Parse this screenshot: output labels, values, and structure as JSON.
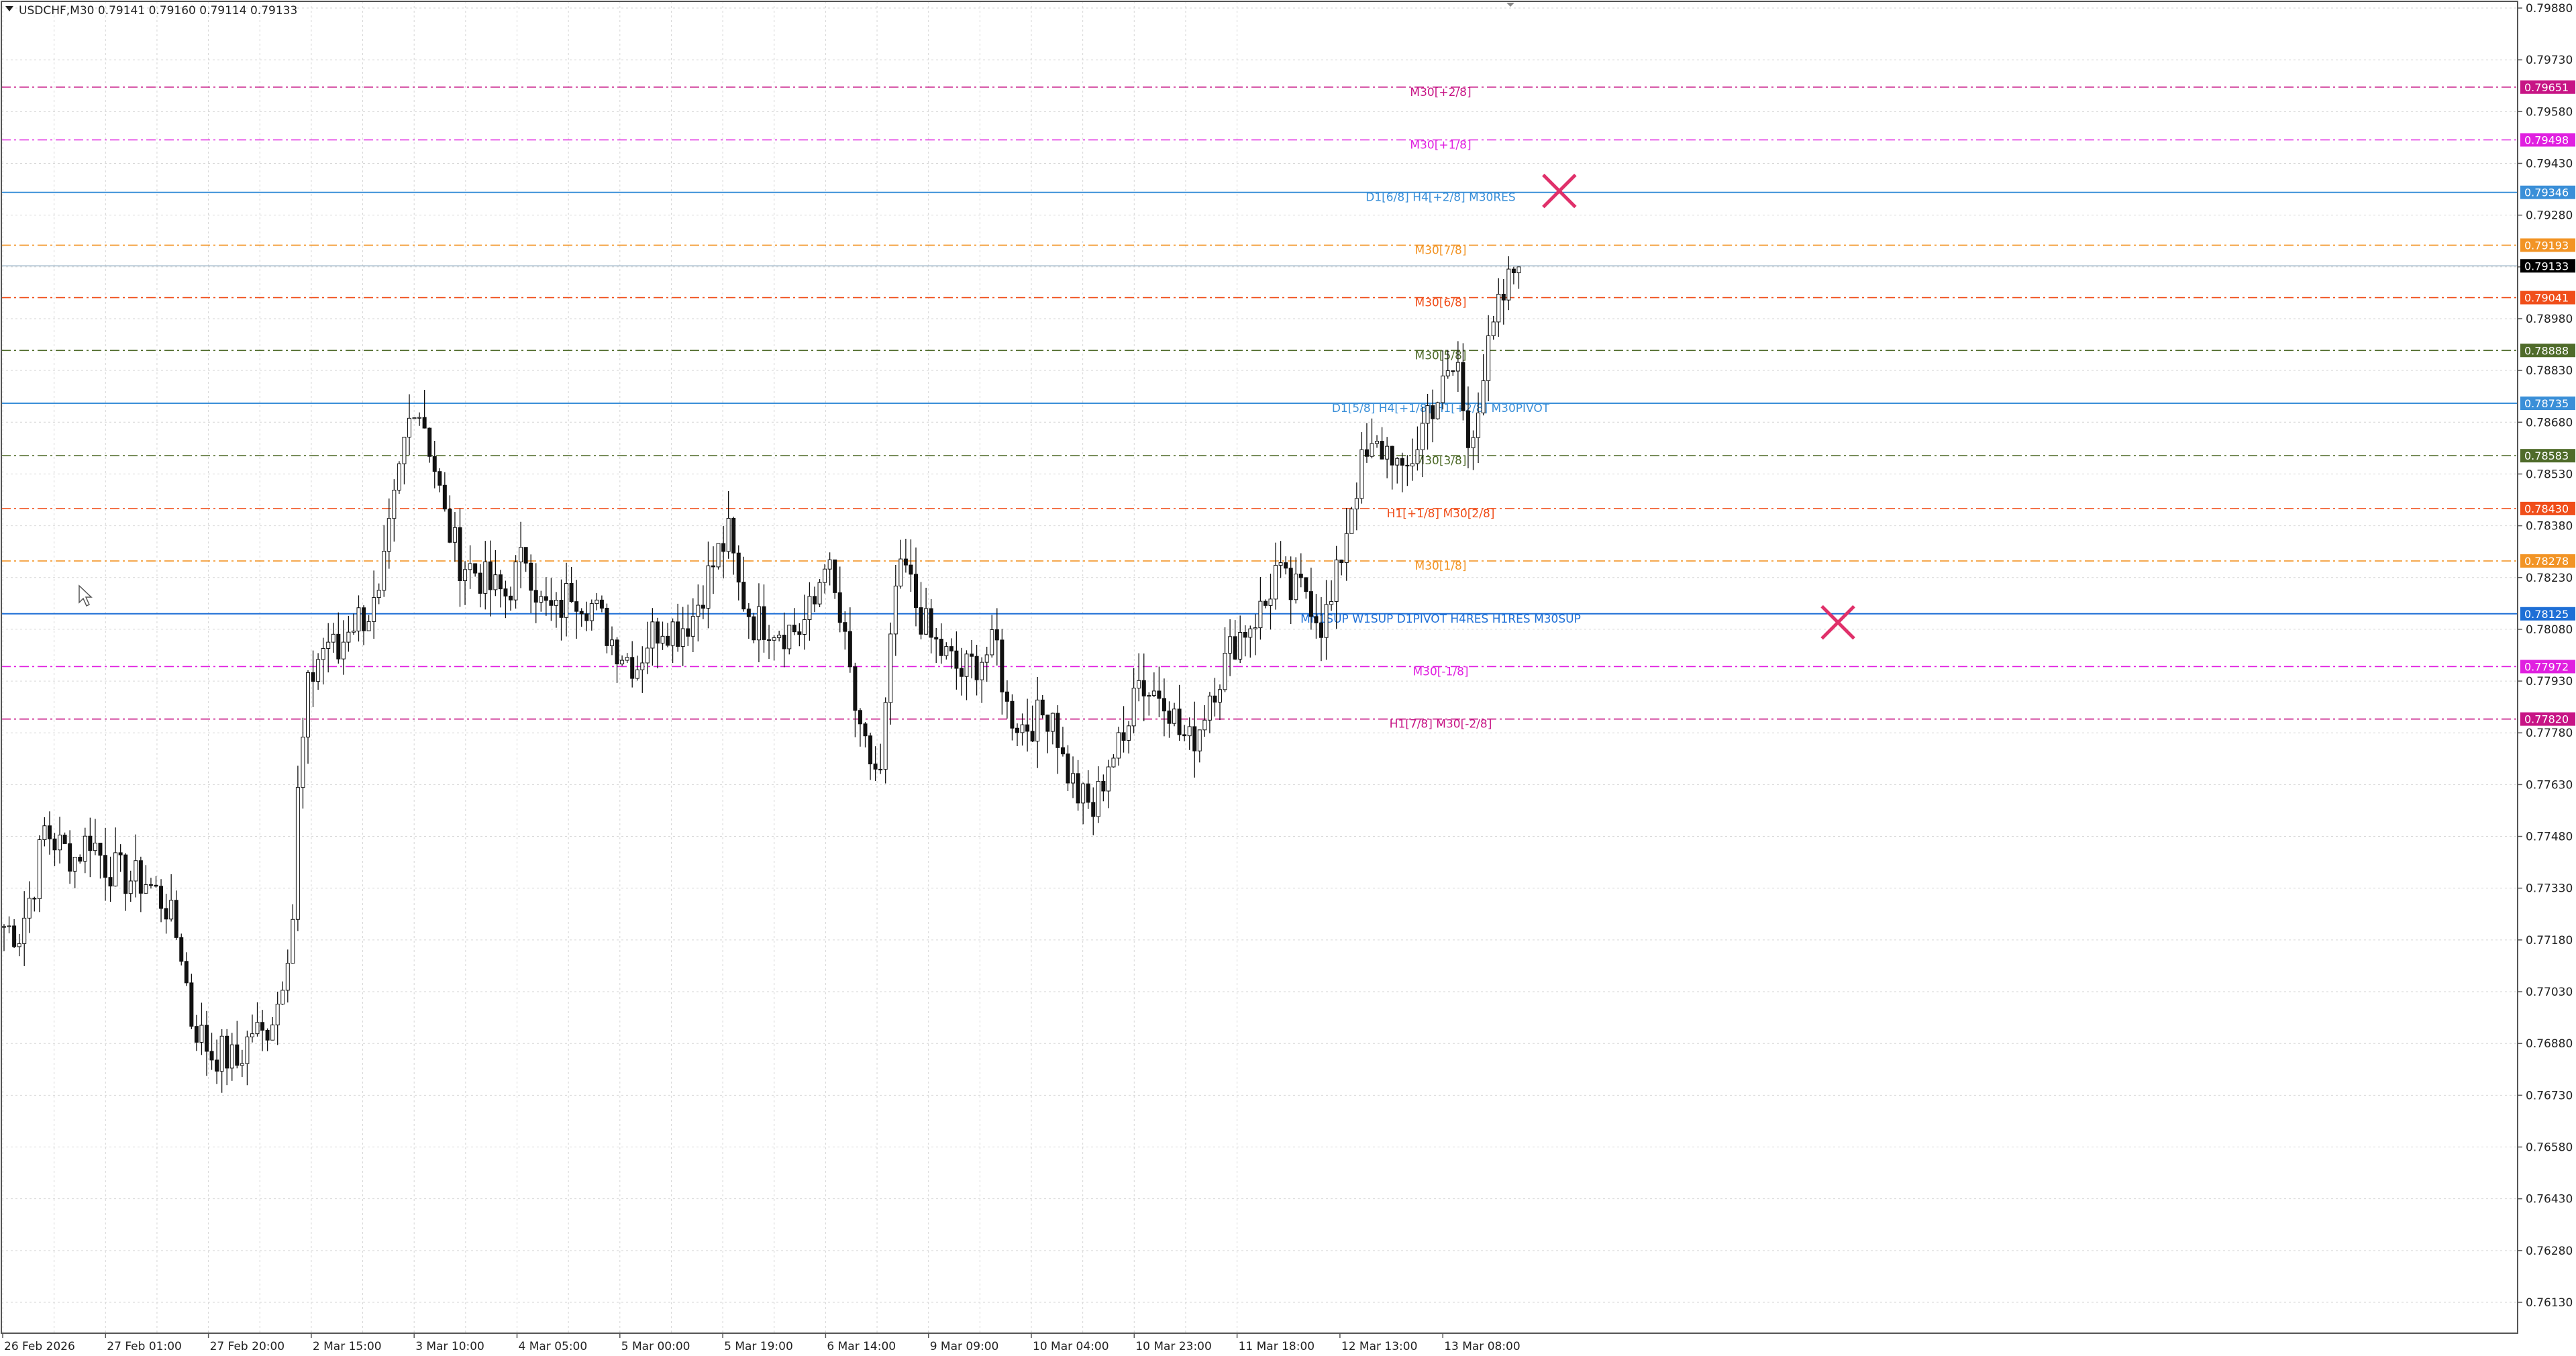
{
  "window": {
    "title": "USDCHF,M30  0.79141 0.79160 0.79114 0.79133"
  },
  "chart_data": {
    "type": "candlestick",
    "symbol": "USDCHF",
    "timeframe": "M30",
    "ohlc_header": {
      "open": 0.79141,
      "high": 0.7916,
      "low": 0.79114,
      "close": 0.79133
    },
    "ylim": [
      0.7606,
      0.7988
    ],
    "y_ticks": [
      "0.79880",
      "0.79730",
      "0.79580",
      "0.79430",
      "0.79280",
      "0.79130",
      "0.78980",
      "0.78830",
      "0.78680",
      "0.78530",
      "0.78380",
      "0.78230",
      "0.78080",
      "0.77930",
      "0.77780",
      "0.77630",
      "0.77480",
      "0.77330",
      "0.77180",
      "0.77030",
      "0.76880",
      "0.76730",
      "0.76580",
      "0.76430",
      "0.76280",
      "0.76130"
    ],
    "x_labels": [
      "26 Feb 2026",
      "27 Feb 01:00",
      "27 Feb 20:00",
      "2 Mar 15:00",
      "3 Mar 10:00",
      "4 Mar 05:00",
      "5 Mar 00:00",
      "5 Mar 19:00",
      "6 Mar 14:00",
      "9 Mar 09:00",
      "10 Mar 04:00",
      "10 Mar 23:00",
      "11 Mar 18:00",
      "12 Mar 13:00",
      "13 Mar 08:00"
    ],
    "current_price": {
      "value": 0.79133,
      "label": "0.79133",
      "color": "#000000"
    },
    "levels": [
      {
        "label": "M30[+2/8]",
        "price": 0.79651,
        "tag": "0.79651",
        "color": "#C71585",
        "style": "dashdot"
      },
      {
        "label": "M30[+1/8]",
        "price": 0.79498,
        "tag": "0.79498",
        "color": "#E020E0",
        "style": "dashdot"
      },
      {
        "label": "D1[6/8] H4[+2/8] M30RES",
        "price": 0.79346,
        "tag": "0.79346",
        "color": "#3A8FD8",
        "style": "solid"
      },
      {
        "label": "M30[7/8]",
        "price": 0.79193,
        "tag": "0.79193",
        "color": "#F29425",
        "style": "dashdot"
      },
      {
        "label": "M30[6/8]",
        "price": 0.79041,
        "tag": "0.79041",
        "color": "#F04E1A",
        "style": "dashdot"
      },
      {
        "label": "M30[5/8]",
        "price": 0.78888,
        "tag": "0.78888",
        "color": "#4F6B2A",
        "style": "dashdot"
      },
      {
        "label": "D1[5/8] H4[+1/8] H1[+2/8] M30PIVOT",
        "price": 0.78735,
        "tag": "0.78735",
        "color": "#3A8FD8",
        "style": "solid"
      },
      {
        "label": "M30[3/8]",
        "price": 0.78583,
        "tag": "0.78583",
        "color": "#4F6B2A",
        "style": "dashdot"
      },
      {
        "label": "H1[+1/8] M30[2/8]",
        "price": 0.7843,
        "tag": "0.78430",
        "color": "#F04E1A",
        "style": "dashdot"
      },
      {
        "label": "M30[1/8]",
        "price": 0.78278,
        "tag": "0.78278",
        "color": "#F29425",
        "style": "dashdot"
      },
      {
        "label": "MN1SUP W1SUP D1PIVOT H4RES H1RES M30SUP",
        "price": 0.78125,
        "tag": "0.78125",
        "color": "#1E6FD6",
        "style": "solid"
      },
      {
        "label": "M30[-1/8]",
        "price": 0.77972,
        "tag": "0.77972",
        "color": "#E020E0",
        "style": "dashdot"
      },
      {
        "label": "H1[7/8] M30[-2/8]",
        "price": 0.7782,
        "tag": "0.77820",
        "color": "#C71585",
        "style": "dashdot"
      }
    ],
    "markers": [
      {
        "name": "cross-marker-upper",
        "price": 0.7935,
        "time_index": 307
      },
      {
        "name": "cross-marker-lower",
        "price": 0.781,
        "time_index": 362
      }
    ],
    "price_path": [
      [
        0,
        0.7722
      ],
      [
        3,
        0.772
      ],
      [
        6,
        0.7735
      ],
      [
        8,
        0.775
      ],
      [
        11,
        0.7745
      ],
      [
        14,
        0.7742
      ],
      [
        17,
        0.7748
      ],
      [
        20,
        0.774
      ],
      [
        24,
        0.7736
      ],
      [
        28,
        0.7735
      ],
      [
        32,
        0.7728
      ],
      [
        35,
        0.7715
      ],
      [
        37,
        0.7695
      ],
      [
        39,
        0.769
      ],
      [
        41,
        0.7685
      ],
      [
        43,
        0.7685
      ],
      [
        46,
        0.7682
      ],
      [
        49,
        0.7692
      ],
      [
        51,
        0.769
      ],
      [
        54,
        0.77
      ],
      [
        57,
        0.7725
      ],
      [
        58,
        0.776
      ],
      [
        60,
        0.779
      ],
      [
        62,
        0.78
      ],
      [
        64,
        0.7805
      ],
      [
        66,
        0.78
      ],
      [
        68,
        0.781
      ],
      [
        71,
        0.7812
      ],
      [
        74,
        0.7815
      ],
      [
        76,
        0.7835
      ],
      [
        79,
        0.7862
      ],
      [
        81,
        0.7875
      ],
      [
        83,
        0.7868
      ],
      [
        85,
        0.7855
      ],
      [
        87,
        0.784
      ],
      [
        90,
        0.7828
      ],
      [
        93,
        0.7825
      ],
      [
        96,
        0.782
      ],
      [
        99,
        0.7818
      ],
      [
        103,
        0.783
      ],
      [
        106,
        0.7815
      ],
      [
        109,
        0.7812
      ],
      [
        112,
        0.782
      ],
      [
        116,
        0.7815
      ],
      [
        120,
        0.7805
      ],
      [
        123,
        0.78
      ],
      [
        125,
        0.7798
      ],
      [
        127,
        0.7805
      ],
      [
        130,
        0.781
      ],
      [
        133,
        0.7808
      ],
      [
        136,
        0.7812
      ],
      [
        138,
        0.782
      ],
      [
        141,
        0.783
      ],
      [
        143,
        0.7835
      ],
      [
        145,
        0.782
      ],
      [
        148,
        0.781
      ],
      [
        151,
        0.781
      ],
      [
        154,
        0.7808
      ],
      [
        157,
        0.7808
      ],
      [
        160,
        0.7815
      ],
      [
        162,
        0.783
      ],
      [
        165,
        0.781
      ],
      [
        167,
        0.7795
      ],
      [
        169,
        0.7775
      ],
      [
        171,
        0.777
      ],
      [
        173,
        0.7765
      ],
      [
        176,
        0.782
      ],
      [
        178,
        0.7825
      ],
      [
        180,
        0.7815
      ],
      [
        183,
        0.7805
      ],
      [
        186,
        0.78
      ],
      [
        189,
        0.7795
      ],
      [
        193,
        0.78
      ],
      [
        196,
        0.7803
      ],
      [
        198,
        0.7785
      ],
      [
        201,
        0.778
      ],
      [
        204,
        0.7782
      ],
      [
        207,
        0.7785
      ],
      [
        209,
        0.777
      ],
      [
        212,
        0.776
      ],
      [
        215,
        0.7755
      ],
      [
        218,
        0.777
      ],
      [
        221,
        0.7775
      ],
      [
        223,
        0.7795
      ],
      [
        226,
        0.779
      ],
      [
        229,
        0.779
      ],
      [
        232,
        0.7778
      ],
      [
        234,
        0.7775
      ],
      [
        236,
        0.778
      ],
      [
        238,
        0.779
      ],
      [
        240,
        0.7795
      ],
      [
        243,
        0.7805
      ],
      [
        246,
        0.781
      ],
      [
        249,
        0.7815
      ],
      [
        251,
        0.7825
      ],
      [
        254,
        0.7818
      ],
      [
        257,
        0.782
      ],
      [
        260,
        0.781
      ],
      [
        262,
        0.7815
      ],
      [
        264,
        0.783
      ],
      [
        266,
        0.7845
      ],
      [
        268,
        0.7855
      ],
      [
        271,
        0.786
      ],
      [
        274,
        0.786
      ],
      [
        276,
        0.785
      ],
      [
        279,
        0.7862
      ],
      [
        281,
        0.7872
      ],
      [
        283,
        0.7875
      ],
      [
        285,
        0.788
      ],
      [
        287,
        0.7885
      ],
      [
        288,
        0.787
      ],
      [
        289,
        0.7862
      ],
      [
        291,
        0.7875
      ],
      [
        293,
        0.7888
      ],
      [
        295,
        0.79
      ],
      [
        297,
        0.7908
      ],
      [
        298,
        0.7912
      ],
      [
        299,
        0.7913
      ]
    ]
  }
}
